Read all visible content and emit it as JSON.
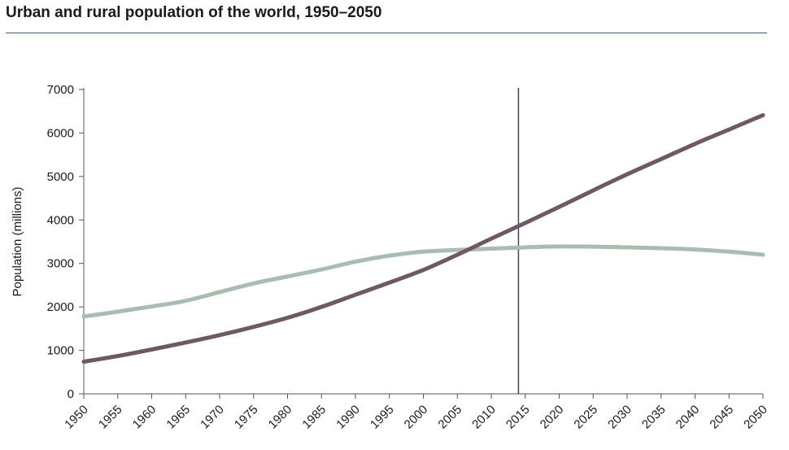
{
  "page": {
    "title": "Urban and rural population of the world, 1950–2050"
  },
  "chart_data": {
    "type": "line",
    "title": "Urban and rural population of the world, 1950–2050",
    "xlabel": "",
    "ylabel": "Population (millions)",
    "xlim": [
      1950,
      2050
    ],
    "ylim": [
      0,
      7000
    ],
    "x_ticks": [
      1950,
      1955,
      1960,
      1965,
      1970,
      1975,
      1980,
      1985,
      1990,
      1995,
      2000,
      2005,
      2010,
      2015,
      2020,
      2025,
      2030,
      2035,
      2040,
      2045,
      2050
    ],
    "y_ticks": [
      0,
      1000,
      2000,
      3000,
      4000,
      5000,
      6000,
      7000
    ],
    "grid": false,
    "legend": "none",
    "reference_line": {
      "x": 2014,
      "color": "#2e4a66"
    },
    "series": [
      {
        "color": "#a8bcb0",
        "x": [
          1950,
          1955,
          1960,
          1965,
          1970,
          1975,
          1980,
          1985,
          1990,
          1995,
          2000,
          2005,
          2010,
          2015,
          2020,
          2025,
          2030,
          2035,
          2040,
          2045,
          2050
        ],
        "values": [
          1780,
          1890,
          2010,
          2140,
          2340,
          2540,
          2700,
          2860,
          3040,
          3180,
          3270,
          3310,
          3340,
          3370,
          3390,
          3385,
          3370,
          3350,
          3320,
          3270,
          3200
        ]
      },
      {
        "color": "#6e5866",
        "x": [
          1950,
          1955,
          1960,
          1965,
          1970,
          1975,
          1980,
          1985,
          1990,
          1995,
          2000,
          2005,
          2010,
          2015,
          2020,
          2025,
          2030,
          2035,
          2040,
          2045,
          2050
        ],
        "values": [
          740,
          870,
          1020,
          1180,
          1350,
          1540,
          1750,
          2000,
          2280,
          2560,
          2850,
          3200,
          3570,
          3930,
          4300,
          4680,
          5050,
          5400,
          5750,
          6080,
          6410
        ]
      }
    ]
  }
}
